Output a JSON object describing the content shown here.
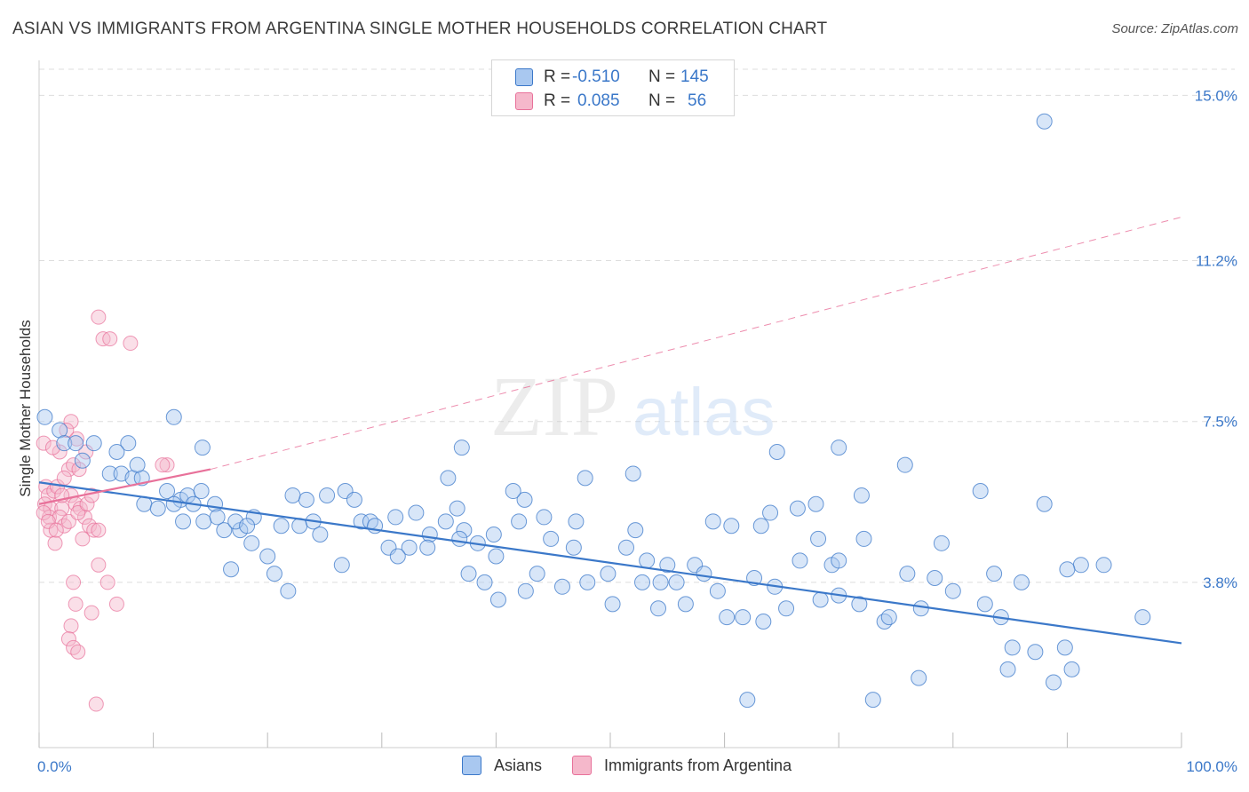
{
  "title": "ASIAN VS IMMIGRANTS FROM ARGENTINA SINGLE MOTHER HOUSEHOLDS CORRELATION CHART",
  "source": "Source: ZipAtlas.com",
  "watermark": {
    "zip": "ZIP",
    "atlas": "atlas"
  },
  "legend": {
    "rows": [
      {
        "r_label": "R =",
        "r_value": "-0.510",
        "n_label": "N =",
        "n_value": "145",
        "color": "#a9c8f0"
      },
      {
        "r_label": "R =",
        "r_value": "0.085",
        "n_label": "N =",
        "n_value": "56",
        "color": "#f5b8cb"
      }
    ]
  },
  "bottom_legend": [
    {
      "label": "Asians",
      "color": "#a9c8f0"
    },
    {
      "label": "Immigrants from Argentina",
      "color": "#f5b8cb"
    }
  ],
  "colors": {
    "blue": "#3b78c9",
    "blue_fill": "#a9c8f0",
    "pink": "#e8719a",
    "pink_fill": "#f5b8cb",
    "grid": "#dddddd"
  },
  "chart_data": {
    "type": "scatter",
    "title": "ASIAN VS IMMIGRANTS FROM ARGENTINA SINGLE MOTHER HOUSEHOLDS CORRELATION CHART",
    "xlabel": "",
    "ylabel": "Single Mother Households",
    "xlim": [
      0,
      100
    ],
    "ylim": [
      0,
      15.6
    ],
    "x_tick_labels": [
      "0.0%",
      "100.0%"
    ],
    "y_ticks": [
      3.8,
      7.5,
      11.2,
      15.0
    ],
    "y_tick_labels": [
      "3.8%",
      "7.5%",
      "11.2%",
      "15.0%"
    ],
    "grid": true,
    "series": [
      {
        "name": "Asians",
        "color": "#3b78c9",
        "trend": {
          "x": [
            0,
            100
          ],
          "y": [
            6.1,
            2.4
          ]
        },
        "points": [
          [
            0.5,
            7.6
          ],
          [
            1.8,
            7.3
          ],
          [
            2.2,
            7.0
          ],
          [
            3.2,
            7.0
          ],
          [
            4.8,
            7.0
          ],
          [
            3.8,
            6.6
          ],
          [
            7.8,
            7.0
          ],
          [
            14.3,
            6.9
          ],
          [
            11.8,
            7.6
          ],
          [
            6.2,
            6.3
          ],
          [
            7.2,
            6.3
          ],
          [
            8.2,
            6.2
          ],
          [
            6.8,
            6.8
          ],
          [
            11.2,
            5.9
          ],
          [
            12.4,
            5.7
          ],
          [
            13.0,
            5.8
          ],
          [
            14.2,
            5.9
          ],
          [
            9.2,
            5.6
          ],
          [
            10.4,
            5.5
          ],
          [
            11.8,
            5.6
          ],
          [
            15.4,
            5.6
          ],
          [
            12.6,
            5.2
          ],
          [
            14.4,
            5.2
          ],
          [
            15.6,
            5.3
          ],
          [
            16.2,
            5.0
          ],
          [
            17.6,
            5.0
          ],
          [
            18.8,
            5.3
          ],
          [
            17.2,
            5.2
          ],
          [
            18.2,
            5.1
          ],
          [
            21.2,
            5.1
          ],
          [
            22.8,
            5.1
          ],
          [
            24.0,
            5.2
          ],
          [
            23.4,
            5.7
          ],
          [
            22.2,
            5.8
          ],
          [
            24.6,
            4.9
          ],
          [
            25.2,
            5.8
          ],
          [
            26.8,
            5.9
          ],
          [
            27.6,
            5.7
          ],
          [
            28.2,
            5.2
          ],
          [
            29.0,
            5.2
          ],
          [
            29.4,
            5.1
          ],
          [
            30.6,
            4.6
          ],
          [
            31.2,
            5.3
          ],
          [
            33.0,
            5.4
          ],
          [
            34.2,
            4.9
          ],
          [
            35.6,
            5.2
          ],
          [
            36.6,
            5.5
          ],
          [
            37.2,
            5.0
          ],
          [
            36.8,
            4.8
          ],
          [
            38.4,
            4.7
          ],
          [
            39.8,
            4.9
          ],
          [
            42.0,
            5.2
          ],
          [
            37.0,
            6.9
          ],
          [
            35.8,
            6.2
          ],
          [
            44.2,
            5.3
          ],
          [
            47.0,
            5.2
          ],
          [
            47.8,
            6.2
          ],
          [
            52.2,
            5.0
          ],
          [
            52.0,
            6.3
          ],
          [
            59.0,
            5.2
          ],
          [
            60.6,
            5.1
          ],
          [
            63.2,
            5.1
          ],
          [
            66.4,
            5.5
          ],
          [
            68.2,
            4.8
          ],
          [
            55.0,
            4.2
          ],
          [
            57.4,
            4.2
          ],
          [
            62.6,
            3.9
          ],
          [
            64.4,
            3.7
          ],
          [
            66.6,
            4.3
          ],
          [
            69.4,
            4.2
          ],
          [
            70.0,
            4.3
          ],
          [
            72.2,
            4.8
          ],
          [
            76.0,
            4.0
          ],
          [
            70.0,
            3.5
          ],
          [
            78.4,
            3.9
          ],
          [
            77.2,
            3.2
          ],
          [
            83.6,
            4.0
          ],
          [
            88.0,
            5.6
          ],
          [
            64.6,
            6.8
          ],
          [
            70.0,
            6.9
          ],
          [
            56.6,
            3.3
          ],
          [
            61.6,
            3.0
          ],
          [
            59.4,
            3.6
          ],
          [
            60.2,
            3.0
          ],
          [
            63.4,
            2.9
          ],
          [
            65.4,
            3.2
          ],
          [
            68.4,
            3.4
          ],
          [
            71.8,
            3.3
          ],
          [
            74.0,
            2.9
          ],
          [
            74.4,
            3.0
          ],
          [
            84.2,
            3.0
          ],
          [
            85.2,
            2.3
          ],
          [
            84.8,
            1.8
          ],
          [
            87.2,
            2.2
          ],
          [
            90.4,
            1.8
          ],
          [
            88.8,
            1.5
          ],
          [
            89.8,
            2.3
          ],
          [
            96.6,
            3.0
          ],
          [
            68.0,
            5.6
          ],
          [
            72.0,
            5.8
          ],
          [
            82.4,
            5.9
          ],
          [
            79.0,
            4.7
          ],
          [
            64.0,
            5.4
          ],
          [
            75.8,
            6.5
          ],
          [
            80.0,
            3.6
          ],
          [
            86.0,
            3.8
          ],
          [
            82.8,
            3.3
          ],
          [
            93.2,
            4.2
          ],
          [
            91.2,
            4.2
          ],
          [
            90.0,
            4.1
          ],
          [
            77.0,
            1.6
          ],
          [
            73.0,
            1.1
          ],
          [
            62.0,
            1.1
          ],
          [
            42.5,
            5.7
          ],
          [
            41.5,
            5.9
          ],
          [
            44.8,
            4.8
          ],
          [
            40.0,
            4.4
          ],
          [
            49.8,
            4.0
          ],
          [
            45.8,
            3.7
          ],
          [
            48.0,
            3.8
          ],
          [
            54.4,
            3.8
          ],
          [
            50.2,
            3.3
          ],
          [
            52.8,
            3.8
          ],
          [
            54.2,
            3.2
          ],
          [
            55.8,
            3.8
          ],
          [
            46.8,
            4.6
          ],
          [
            43.6,
            4.0
          ],
          [
            51.4,
            4.6
          ],
          [
            53.2,
            4.3
          ],
          [
            58.2,
            4.0
          ],
          [
            40.2,
            3.4
          ],
          [
            42.6,
            3.6
          ],
          [
            39.0,
            3.8
          ],
          [
            37.6,
            4.0
          ],
          [
            34.0,
            4.6
          ],
          [
            32.4,
            4.6
          ],
          [
            31.4,
            4.4
          ],
          [
            20.0,
            4.4
          ],
          [
            26.5,
            4.2
          ],
          [
            21.8,
            3.6
          ],
          [
            16.8,
            4.1
          ],
          [
            18.6,
            4.7
          ],
          [
            20.6,
            4.0
          ],
          [
            13.5,
            5.6
          ],
          [
            9.0,
            6.2
          ],
          [
            8.6,
            6.5
          ],
          [
            88.0,
            14.4
          ]
        ]
      },
      {
        "name": "Immigrants from Argentina",
        "color": "#e8719a",
        "trend": {
          "x": [
            0,
            15
          ],
          "y": [
            5.6,
            6.4
          ]
        },
        "trend_extended": {
          "x": [
            15,
            100
          ],
          "y": [
            6.4,
            12.2
          ]
        },
        "points": [
          [
            0.4,
            7.0
          ],
          [
            0.6,
            6.0
          ],
          [
            0.8,
            5.8
          ],
          [
            0.5,
            5.6
          ],
          [
            1.0,
            5.5
          ],
          [
            1.3,
            5.9
          ],
          [
            1.6,
            6.0
          ],
          [
            2.0,
            5.5
          ],
          [
            0.9,
            5.3
          ],
          [
            1.8,
            5.3
          ],
          [
            2.2,
            5.1
          ],
          [
            2.6,
            6.4
          ],
          [
            3.0,
            6.5
          ],
          [
            3.3,
            7.1
          ],
          [
            2.8,
            7.5
          ],
          [
            4.1,
            6.8
          ],
          [
            3.5,
            6.4
          ],
          [
            2.2,
            6.2
          ],
          [
            2.8,
            5.8
          ],
          [
            3.2,
            5.6
          ],
          [
            3.6,
            5.5
          ],
          [
            4.0,
            5.3
          ],
          [
            4.4,
            5.1
          ],
          [
            4.8,
            5.0
          ],
          [
            5.2,
            5.0
          ],
          [
            3.8,
            4.8
          ],
          [
            1.4,
            4.7
          ],
          [
            1.0,
            5.0
          ],
          [
            2.6,
            5.2
          ],
          [
            3.4,
            5.4
          ],
          [
            4.2,
            5.6
          ],
          [
            4.6,
            5.8
          ],
          [
            1.8,
            6.8
          ],
          [
            2.4,
            7.3
          ],
          [
            1.2,
            6.9
          ],
          [
            3.0,
            3.8
          ],
          [
            5.2,
            4.2
          ],
          [
            6.0,
            3.8
          ],
          [
            6.8,
            3.3
          ],
          [
            3.2,
            3.3
          ],
          [
            4.6,
            3.1
          ],
          [
            2.8,
            2.8
          ],
          [
            2.6,
            2.5
          ],
          [
            3.0,
            2.3
          ],
          [
            3.4,
            2.2
          ],
          [
            5.0,
            1.0
          ],
          [
            5.2,
            9.9
          ],
          [
            5.6,
            9.4
          ],
          [
            8.0,
            9.3
          ],
          [
            6.2,
            9.4
          ],
          [
            11.2,
            6.5
          ],
          [
            10.8,
            6.5
          ],
          [
            0.4,
            5.4
          ],
          [
            0.8,
            5.2
          ],
          [
            2.0,
            5.8
          ],
          [
            1.5,
            5.0
          ]
        ]
      }
    ]
  }
}
